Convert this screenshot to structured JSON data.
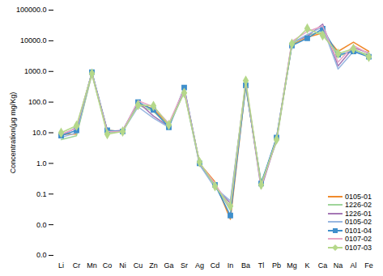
{
  "chart_data": {
    "type": "line",
    "y_label": "Concentration(μg mg/Kg)",
    "log": "y",
    "legend": "lower right",
    "categories": [
      "Li",
      "Cr",
      "Mn",
      "Co",
      "Ni",
      "Cu",
      "Zn",
      "Ga",
      "Sr",
      "Ag",
      "Cd",
      "In",
      "Ba",
      "Tl",
      "Pb",
      "Mg",
      "K",
      "Ca",
      "Na",
      "Al",
      "Fe"
    ],
    "ylim": [
      0.001,
      100000
    ],
    "yticks": [
      {
        "value": 0.001,
        "label": "0.0"
      },
      {
        "value": 0.01,
        "label": "0.0"
      },
      {
        "value": 0.1,
        "label": "0.1"
      },
      {
        "value": 1,
        "label": "1.0"
      },
      {
        "value": 10,
        "label": "10.0"
      },
      {
        "value": 100,
        "label": "100.0"
      },
      {
        "value": 1000,
        "label": "1000.0"
      },
      {
        "value": 10000,
        "label": "10000.0"
      },
      {
        "value": 100000,
        "label": "100000.0"
      }
    ],
    "series": [
      {
        "name": "0105-01",
        "color": "#f08a2c",
        "marker": "none",
        "values": [
          9,
          9,
          850,
          12,
          11,
          90,
          60,
          18,
          250,
          1.0,
          0.25,
          0.015,
          350,
          0.2,
          6,
          7500,
          13000,
          18000,
          4500,
          9000,
          4500
        ]
      },
      {
        "name": "1226-02",
        "color": "#9fd59a",
        "marker": "none",
        "values": [
          6,
          8,
          800,
          10,
          11,
          80,
          50,
          16,
          220,
          0.9,
          0.2,
          0.03,
          300,
          0.25,
          5,
          8000,
          15000,
          20000,
          3000,
          5000,
          3500
        ]
      },
      {
        "name": "1226-01",
        "color": "#a577b5",
        "marker": "none",
        "values": [
          8,
          15,
          900,
          11,
          12,
          100,
          35,
          16,
          280,
          1.0,
          0.18,
          0.05,
          400,
          0.15,
          6,
          9000,
          14000,
          35000,
          1500,
          6000,
          4000
        ]
      },
      {
        "name": "0105-02",
        "color": "#97b6e0",
        "marker": "none",
        "values": [
          7,
          10,
          950,
          11,
          11,
          70,
          30,
          15,
          230,
          0.9,
          0.16,
          0.06,
          380,
          0.2,
          7,
          8500,
          16000,
          28000,
          1200,
          4500,
          3200
        ]
      },
      {
        "name": "0101-04",
        "color": "#3f8fcc",
        "marker": "square",
        "values": [
          8,
          12,
          950,
          12,
          11,
          100,
          55,
          15,
          300,
          1.0,
          0.2,
          0.02,
          350,
          0.22,
          7,
          7000,
          12000,
          25000,
          3500,
          4500,
          3000
        ]
      },
      {
        "name": "0107-02",
        "color": "#e7a6c6",
        "marker": "none",
        "values": [
          9,
          14,
          900,
          11,
          11,
          110,
          70,
          20,
          270,
          1.0,
          0.22,
          0.035,
          450,
          0.18,
          6,
          9500,
          20000,
          30000,
          2000,
          7000,
          3800
        ]
      },
      {
        "name": "0107-03",
        "color": "#b5d88a",
        "marker": "diamond",
        "values": [
          10,
          17,
          850,
          9,
          11,
          80,
          75,
          18,
          200,
          1.1,
          0.18,
          0.04,
          500,
          0.2,
          6,
          8000,
          25000,
          15000,
          3800,
          5500,
          3000
        ]
      }
    ]
  }
}
